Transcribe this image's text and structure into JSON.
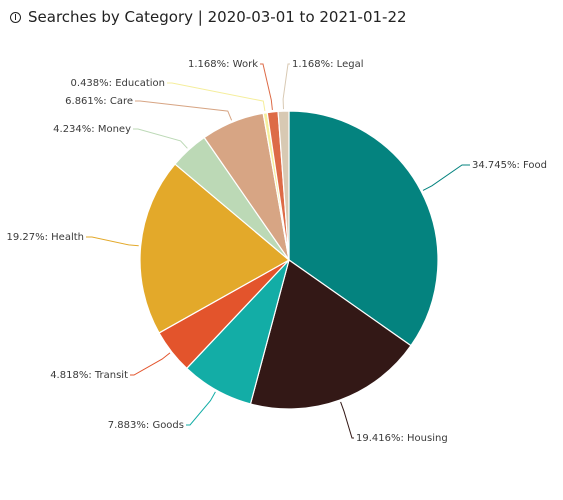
{
  "header": {
    "icon": "info-icon",
    "title": "Searches by Category | 2020-03-01 to 2021-01-22"
  },
  "chart_data": {
    "type": "pie",
    "title": "Searches by Category | 2020-03-01 to 2021-01-22",
    "start_angle": "12 o'clock",
    "direction": "clockwise",
    "slices": [
      {
        "name": "Food",
        "percent": 34.745,
        "label": "34.745%: Food",
        "color": "#04837f"
      },
      {
        "name": "Housing",
        "percent": 19.416,
        "label": "19.416%: Housing",
        "color": "#331816"
      },
      {
        "name": "Goods",
        "percent": 7.883,
        "label": "7.883%: Goods",
        "color": "#13ada6"
      },
      {
        "name": "Transit",
        "percent": 4.818,
        "label": "4.818%: Transit",
        "color": "#e3542c"
      },
      {
        "name": "Health",
        "percent": 19.27,
        "label": "19.27%: Health",
        "color": "#e3a92a"
      },
      {
        "name": "Money",
        "percent": 4.234,
        "label": "4.234%: Money",
        "color": "#bcd9b6"
      },
      {
        "name": "Care",
        "percent": 6.861,
        "label": "6.861%: Care",
        "color": "#d7a584"
      },
      {
        "name": "Education",
        "percent": 0.438,
        "label": "0.438%: Education",
        "color": "#f5ee9c"
      },
      {
        "name": "Work",
        "percent": 1.168,
        "label": "1.168%: Work",
        "color": "#dd6b47"
      },
      {
        "name": "Legal",
        "percent": 1.168,
        "label": "1.168%: Legal",
        "color": "#d8c9b3"
      }
    ]
  }
}
